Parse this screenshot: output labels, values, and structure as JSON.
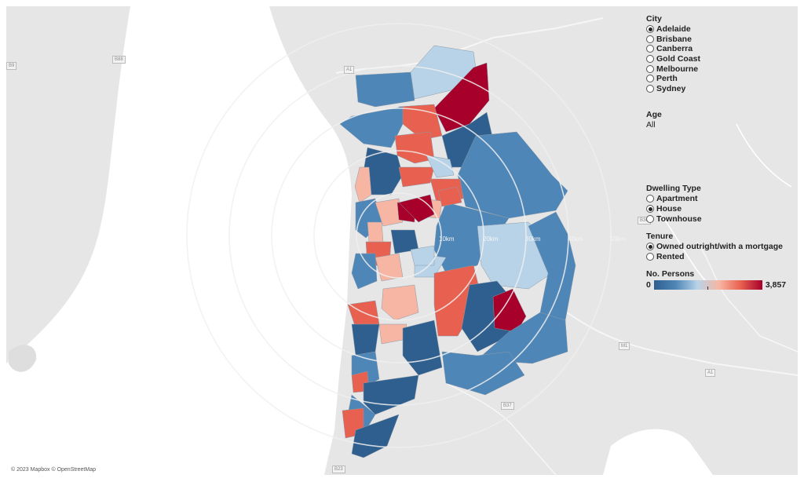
{
  "map": {
    "credit": "© 2023 Mapbox © OpenStreetMap",
    "ring_labels": [
      "10km",
      "20km",
      "30km",
      "40km",
      "50km"
    ],
    "road_labels": [
      "A1",
      "B88",
      "B9",
      "M1",
      "A1",
      "B37",
      "B23",
      "B36"
    ]
  },
  "filters": {
    "city": {
      "title": "City",
      "options": [
        "Adelaide",
        "Brisbane",
        "Canberra",
        "Gold Coast",
        "Melbourne",
        "Perth",
        "Sydney"
      ],
      "selected": "Adelaide"
    },
    "age": {
      "title": "Age",
      "value": "All"
    },
    "dwelling_type": {
      "title": "Dwelling Type",
      "options": [
        "Apartment",
        "House",
        "Townhouse"
      ],
      "selected": "House"
    },
    "tenure": {
      "title": "Tenure",
      "options": [
        "Owned outright/with a mortgage",
        "Rented"
      ],
      "selected": "Owned outright/with a mortgage"
    }
  },
  "legend": {
    "title": "No. Persons",
    "min": "0",
    "max": "3,857",
    "colors": [
      "#2f5f8e",
      "#4e86b8",
      "#b8d3e8",
      "#f7b6a3",
      "#e8604f",
      "#a7002a"
    ]
  }
}
